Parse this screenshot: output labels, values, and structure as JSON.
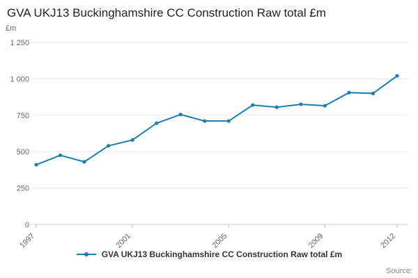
{
  "page": {
    "title": "GVA UKJ13 Buckinghamshire CC Construction Raw total £m",
    "source_label": "Source:"
  },
  "chart_data": {
    "type": "line",
    "title": "GVA UKJ13 Buckinghamshire CC Construction Raw total £m",
    "xlabel": "",
    "ylabel": "£m",
    "x": [
      1997,
      1998,
      1999,
      2000,
      2001,
      2002,
      2003,
      2004,
      2005,
      2006,
      2007,
      2008,
      2009,
      2010,
      2011,
      2012
    ],
    "series": [
      {
        "name": "GVA UKJ13 Buckinghamshire CC Construction Raw total £m",
        "values": [
          410,
          475,
          430,
          540,
          580,
          695,
          755,
          710,
          710,
          820,
          805,
          825,
          815,
          905,
          900,
          1020
        ]
      }
    ],
    "ylim": [
      0,
      1250
    ],
    "yticks": [
      0,
      250,
      500,
      750,
      1000,
      1250
    ],
    "xticks": [
      1997,
      2001,
      2005,
      2009,
      2012
    ],
    "grid": true,
    "legend_position": "bottom",
    "line_color": "#1a7db6",
    "gridline_color": "#e3e3e3",
    "axis_color": "#c9c9c9",
    "tick_color": "#666666"
  }
}
